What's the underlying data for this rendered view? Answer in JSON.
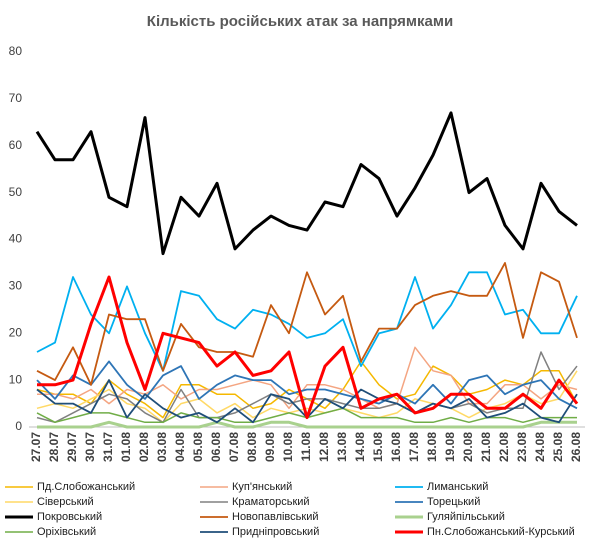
{
  "chart_data": {
    "type": "line",
    "title": "Кількість російських атак за напрямками",
    "categories": [
      "27.07",
      "28.07",
      "29.07",
      "30.07",
      "31.07",
      "01.08",
      "02.08",
      "03.08",
      "04.08",
      "05.08",
      "06.08",
      "07.08",
      "08.08",
      "09.08",
      "10.08",
      "11.08",
      "12.08",
      "13.08",
      "14.08",
      "15.08",
      "16.08",
      "17.08",
      "18.08",
      "19.08",
      "20.08",
      "21.08",
      "22.08",
      "23.08",
      "24.08",
      "25.08",
      "26.08"
    ],
    "ylim": [
      0,
      80
    ],
    "yticks": [
      0,
      10,
      20,
      30,
      40,
      50,
      60,
      70,
      80
    ],
    "grid": false,
    "legend": "bottom",
    "series": [
      {
        "name": "Пд.Слобожанський",
        "color": "#f5b800",
        "values": [
          8,
          7,
          7,
          5,
          10,
          7,
          5,
          2,
          9,
          9,
          7,
          7,
          4,
          5,
          8,
          6,
          4,
          8,
          14,
          9,
          6,
          7,
          13,
          11,
          7,
          8,
          10,
          9,
          12,
          12,
          5
        ]
      },
      {
        "name": "Куп'янський",
        "color": "#f4a582",
        "values": [
          7,
          7,
          6,
          8,
          5,
          8,
          7,
          9,
          6,
          8,
          8,
          9,
          10,
          9,
          4,
          9,
          9,
          8,
          6,
          4,
          5,
          17,
          12,
          11,
          5,
          5,
          9,
          9,
          6,
          9,
          8
        ]
      },
      {
        "name": "Лиманський",
        "color": "#00b0f0",
        "values": [
          16,
          18,
          32,
          24,
          20,
          30,
          20,
          12,
          29,
          28,
          23,
          21,
          25,
          24,
          22,
          19,
          20,
          23,
          13,
          20,
          21,
          32,
          21,
          26,
          33,
          33,
          24,
          25,
          20,
          20,
          28
        ]
      },
      {
        "name": "Сіверський",
        "color": "#ffd966",
        "values": [
          4,
          5,
          4,
          6,
          8,
          5,
          4,
          1,
          5,
          6,
          3,
          5,
          2,
          4,
          3,
          4,
          3,
          4,
          3,
          2,
          3,
          6,
          5,
          4,
          2,
          4,
          5,
          7,
          5,
          6,
          12
        ]
      },
      {
        "name": "Краматорський",
        "color": "#808080",
        "values": [
          2,
          1,
          3,
          5,
          7,
          6,
          3,
          1,
          8,
          2,
          2,
          3,
          5,
          7,
          5,
          6,
          6,
          5,
          4,
          4,
          5,
          3,
          5,
          4,
          5,
          3,
          4,
          4,
          16,
          8,
          13
        ]
      },
      {
        "name": "Торецький",
        "color": "#2e75b6",
        "values": [
          10,
          6,
          11,
          9,
          14,
          9,
          6,
          11,
          13,
          6,
          9,
          11,
          10,
          10,
          7,
          8,
          8,
          7,
          6,
          5,
          7,
          5,
          9,
          5,
          10,
          11,
          7,
          9,
          10,
          6,
          4
        ]
      },
      {
        "name": "Покровський",
        "color": "#000000",
        "values": [
          63,
          57,
          57,
          63,
          49,
          47,
          66,
          37,
          49,
          45,
          52,
          38,
          42,
          45,
          43,
          42,
          48,
          47,
          56,
          53,
          45,
          51,
          58,
          67,
          50,
          53,
          43,
          38,
          52,
          46,
          43
        ]
      },
      {
        "name": "Новопавлівський",
        "color": "#c55a11",
        "values": [
          12,
          10,
          17,
          9,
          24,
          23,
          23,
          12,
          22,
          17,
          16,
          16,
          15,
          26,
          20,
          33,
          24,
          28,
          14,
          21,
          21,
          26,
          28,
          29,
          28,
          28,
          35,
          19,
          33,
          31,
          19
        ]
      },
      {
        "name": "Гуляйпільський",
        "color": "#a9d18e",
        "values": [
          0,
          0,
          0,
          0,
          1,
          0,
          0,
          0,
          0,
          0,
          1,
          0,
          0,
          1,
          1,
          0,
          0,
          0,
          0,
          0,
          0,
          0,
          0,
          0,
          0,
          0,
          0,
          0,
          1,
          1,
          1
        ]
      },
      {
        "name": "Оріхівський",
        "color": "#70ad47",
        "values": [
          3,
          1,
          2,
          3,
          3,
          2,
          1,
          1,
          3,
          2,
          2,
          1,
          1,
          2,
          3,
          2,
          3,
          4,
          2,
          2,
          2,
          1,
          1,
          2,
          1,
          2,
          2,
          1,
          2,
          2,
          2
        ]
      },
      {
        "name": "Придніпровський",
        "color": "#1f4e79",
        "values": [
          8,
          5,
          5,
          3,
          10,
          2,
          7,
          4,
          2,
          3,
          1,
          4,
          1,
          7,
          6,
          2,
          6,
          4,
          8,
          6,
          5,
          3,
          5,
          4,
          6,
          2,
          3,
          5,
          2,
          1,
          7
        ]
      },
      {
        "name": "Пн.Слобожанський-Курський",
        "color": "#ff0000",
        "values": [
          9,
          9,
          10,
          22,
          32,
          18,
          8,
          20,
          19,
          18,
          13,
          16,
          11,
          12,
          16,
          2,
          13,
          17,
          4,
          6,
          7,
          3,
          4,
          7,
          7,
          4,
          4,
          7,
          4,
          10,
          5
        ]
      }
    ]
  }
}
